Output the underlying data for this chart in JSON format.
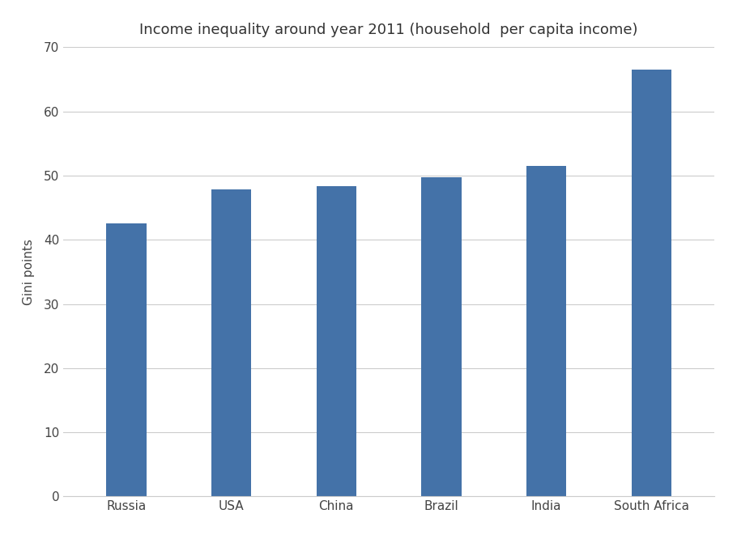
{
  "categories": [
    "Russia",
    "USA",
    "China",
    "Brazil",
    "India",
    "South Africa"
  ],
  "values": [
    42.5,
    47.8,
    48.4,
    49.8,
    51.5,
    66.5
  ],
  "bar_color": "#4472a8",
  "title": "Income inequality around year 2011 (household  per capita income)",
  "ylabel": "Gini points",
  "ylim": [
    0,
    70
  ],
  "yticks": [
    0,
    10,
    20,
    30,
    40,
    50,
    60,
    70
  ],
  "title_fontsize": 13,
  "label_fontsize": 11,
  "tick_fontsize": 11,
  "background_color": "#ffffff",
  "grid_color": "#cccccc",
  "bar_width": 0.38
}
